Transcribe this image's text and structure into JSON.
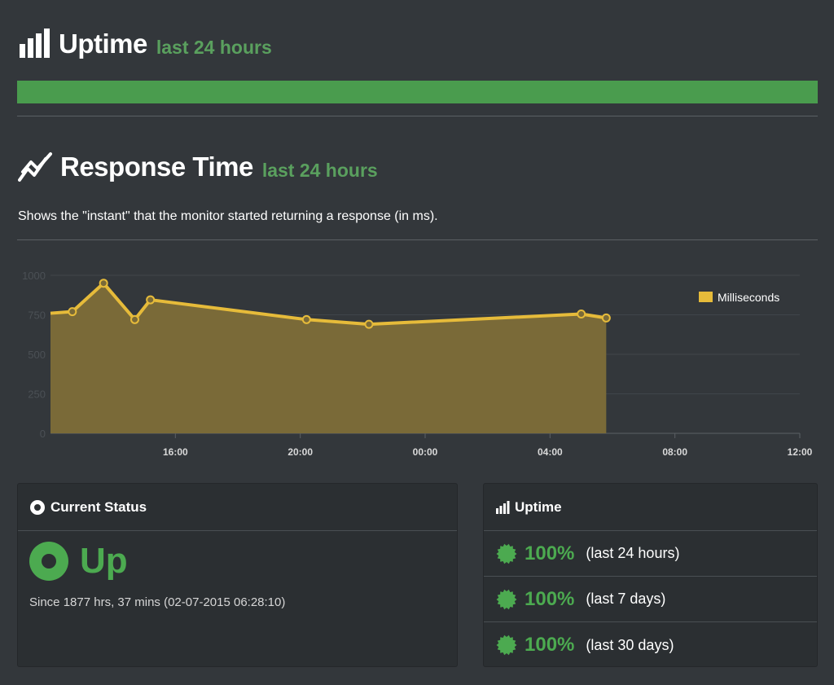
{
  "uptime_section": {
    "title": "Uptime",
    "subtitle": "last 24 hours",
    "bar_color": "#4a9c4e",
    "bar_uptime_fraction": 1.0,
    "icon": "bar-chart-icon"
  },
  "response_section": {
    "title": "Response Time",
    "subtitle": "last 24 hours",
    "description": "Shows the \"instant\" that the monitor started returning a response (in ms).",
    "icon": "line-chart-icon"
  },
  "chart_data": {
    "type": "area",
    "title": "",
    "xlabel": "",
    "ylabel": "",
    "x_unit": "hours since 12:00 (day 1)",
    "x_ticks": [
      {
        "label": "16:00",
        "x": 4
      },
      {
        "label": "20:00",
        "x": 8
      },
      {
        "label": "00:00",
        "x": 12
      },
      {
        "label": "04:00",
        "x": 16
      },
      {
        "label": "08:00",
        "x": 20
      },
      {
        "label": "12:00",
        "x": 24
      }
    ],
    "y_ticks": [
      0,
      250,
      500,
      750,
      1000
    ],
    "ylim": [
      0,
      1000
    ],
    "xlim": [
      0.0,
      24.0
    ],
    "legend_position": "top-right",
    "series": [
      {
        "name": "Milliseconds",
        "color": "#e6bb3a",
        "fill": "#7a6a38",
        "points": [
          {
            "x": 0.0,
            "y": 760
          },
          {
            "x": 0.7,
            "y": 770
          },
          {
            "x": 1.7,
            "y": 950
          },
          {
            "x": 2.7,
            "y": 720
          },
          {
            "x": 3.2,
            "y": 845
          },
          {
            "x": 8.2,
            "y": 720
          },
          {
            "x": 10.2,
            "y": 690
          },
          {
            "x": 17.0,
            "y": 755
          },
          {
            "x": 17.8,
            "y": 730
          }
        ],
        "markers_from_index": 1
      }
    ]
  },
  "status_panel": {
    "heading": "Current Status",
    "icon": "record-circle-icon",
    "status": "Up",
    "status_color": "#4caa50",
    "since": "Since 1877 hrs, 37 mins (02-07-2015 06:28:10)"
  },
  "uptime_panel": {
    "heading": "Uptime",
    "icon": "bar-chart-icon",
    "rows": [
      {
        "percent": "100%",
        "period": "(last 24 hours)",
        "icon": "certificate-badge-icon"
      },
      {
        "percent": "100%",
        "period": "(last 7 days)",
        "icon": "certificate-badge-icon"
      },
      {
        "percent": "100%",
        "period": "(last 30 days)",
        "icon": "certificate-badge-icon"
      }
    ]
  }
}
